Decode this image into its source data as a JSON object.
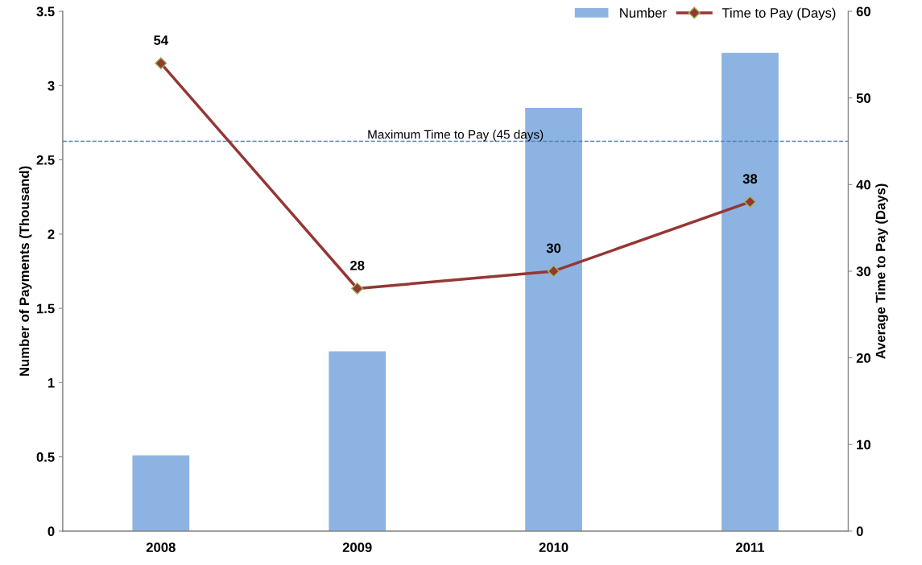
{
  "chart_data": {
    "type": "bar",
    "categories": [
      "2008",
      "2009",
      "2010",
      "2011"
    ],
    "ylabel": "Number of Payments (Thousand)",
    "y2label": "Average Time to Pay (Days)",
    "series": [
      {
        "name": "Number",
        "color": "#8db3e2",
        "values": [
          0.51,
          1.21,
          2.85,
          3.22
        ]
      },
      {
        "name": "Time to Pay (Days)",
        "type": "line",
        "axis": "y2",
        "color": "#953735",
        "values": [
          54,
          28,
          30,
          38
        ],
        "value_labels": [
          "54",
          "28",
          "30",
          "38"
        ],
        "marker": "diamond",
        "line_style": "solid"
      }
    ],
    "ylim": [
      0,
      3.5
    ],
    "yticks": [
      0,
      0.5,
      1,
      1.5,
      2,
      2.5,
      3,
      3.5
    ],
    "y2lim": [
      0,
      60
    ],
    "y2ticks": [
      0,
      10,
      20,
      30,
      40,
      50,
      60
    ],
    "ref_lines": [
      {
        "axis": "y2",
        "value": 45,
        "label": "Maximum Time to Pay (45 days)",
        "color": "#4f81bd",
        "line_style": "dashed"
      }
    ],
    "grid": false,
    "legend": "top right"
  }
}
